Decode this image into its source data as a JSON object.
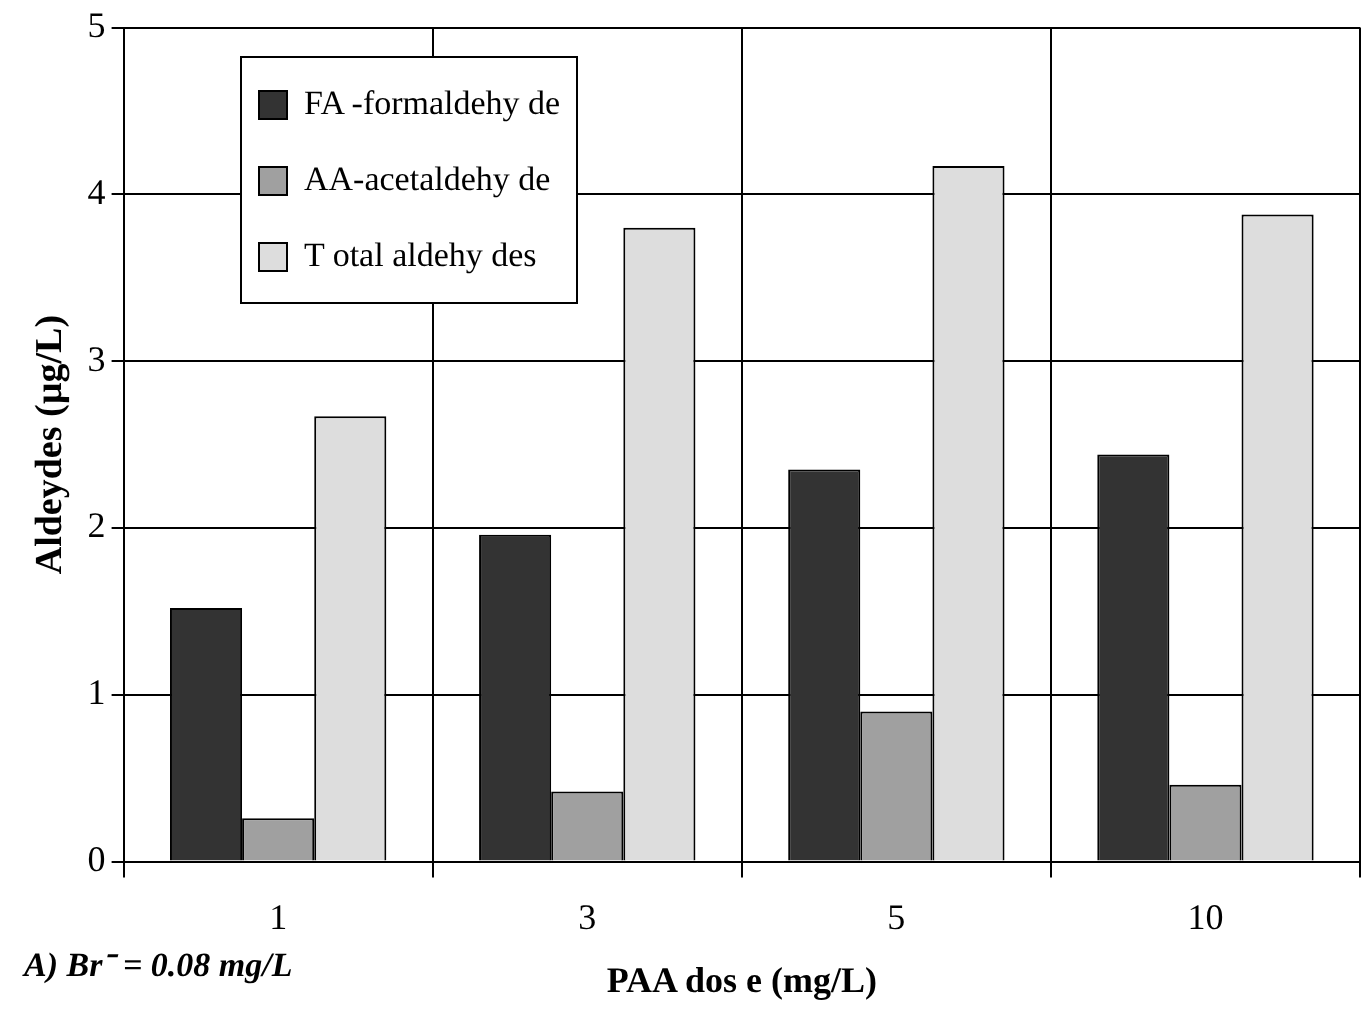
{
  "chart_data": {
    "type": "bar",
    "categories": [
      "1",
      "3",
      "5",
      "10"
    ],
    "series": [
      {
        "name": "FA -formaldehy de",
        "color": "#333333",
        "values": [
          1.52,
          1.96,
          2.35,
          2.44
        ]
      },
      {
        "name": "AA-acetaldehy de",
        "color": "#a0a0a0",
        "values": [
          0.26,
          0.42,
          0.9,
          0.46
        ]
      },
      {
        "name": "T otal aldehy des",
        "color": "#dddddd",
        "values": [
          2.67,
          3.8,
          4.17,
          3.88
        ]
      }
    ],
    "ylim": [
      0,
      5
    ],
    "yticks": [
      0,
      1,
      2,
      3,
      4,
      5
    ],
    "xlabel": "PAA dos e (mg/L)",
    "ylabel": "Aldeydes (µg/L)",
    "annotations": [
      "A) Br⁻ = 0.08 mg/L"
    ],
    "grid": true,
    "legend": "top left"
  }
}
